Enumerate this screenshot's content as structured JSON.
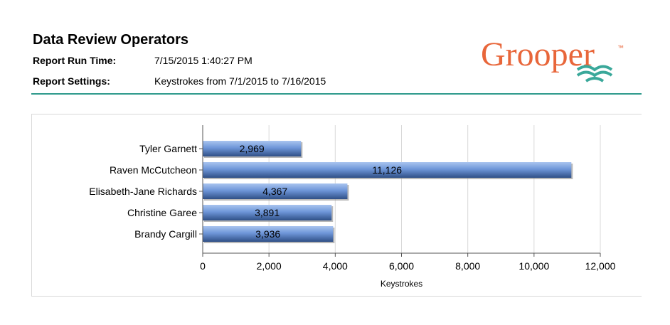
{
  "header": {
    "title": "Data Review Operators",
    "run_time_label": "Report Run Time:",
    "run_time_value": "7/15/2015 1:40:27 PM",
    "settings_label": "Report Settings:",
    "settings_value": "Keystrokes from 7/1/2015 to 7/16/2015"
  },
  "logo": {
    "text": "Grooper",
    "tm": "™",
    "colors": {
      "text": "#e8663a",
      "waves": "#3aa89a"
    }
  },
  "colors": {
    "bar": "#6e96d8",
    "bar_dark": "#2f4f86",
    "rule": "#2f9a8c",
    "grid": "#d9d9d9"
  },
  "chart_data": {
    "type": "bar",
    "orientation": "horizontal",
    "categories": [
      "Tyler Garnett",
      "Raven McCutcheon",
      "Elisabeth-Jane Richards",
      "Christine Garee",
      "Brandy Cargill"
    ],
    "values": [
      2969,
      11126,
      4367,
      3891,
      3936
    ],
    "value_labels": [
      "2,969",
      "11,126",
      "4,367",
      "3,891",
      "3,936"
    ],
    "xlabel": "Keystrokes",
    "xlim": [
      0,
      12000
    ],
    "xticks": [
      0,
      2000,
      4000,
      6000,
      8000,
      10000,
      12000
    ],
    "xtick_labels": [
      "0",
      "2,000",
      "4,000",
      "6,000",
      "8,000",
      "10,000",
      "12,000"
    ],
    "grid": true,
    "legend": "none"
  }
}
